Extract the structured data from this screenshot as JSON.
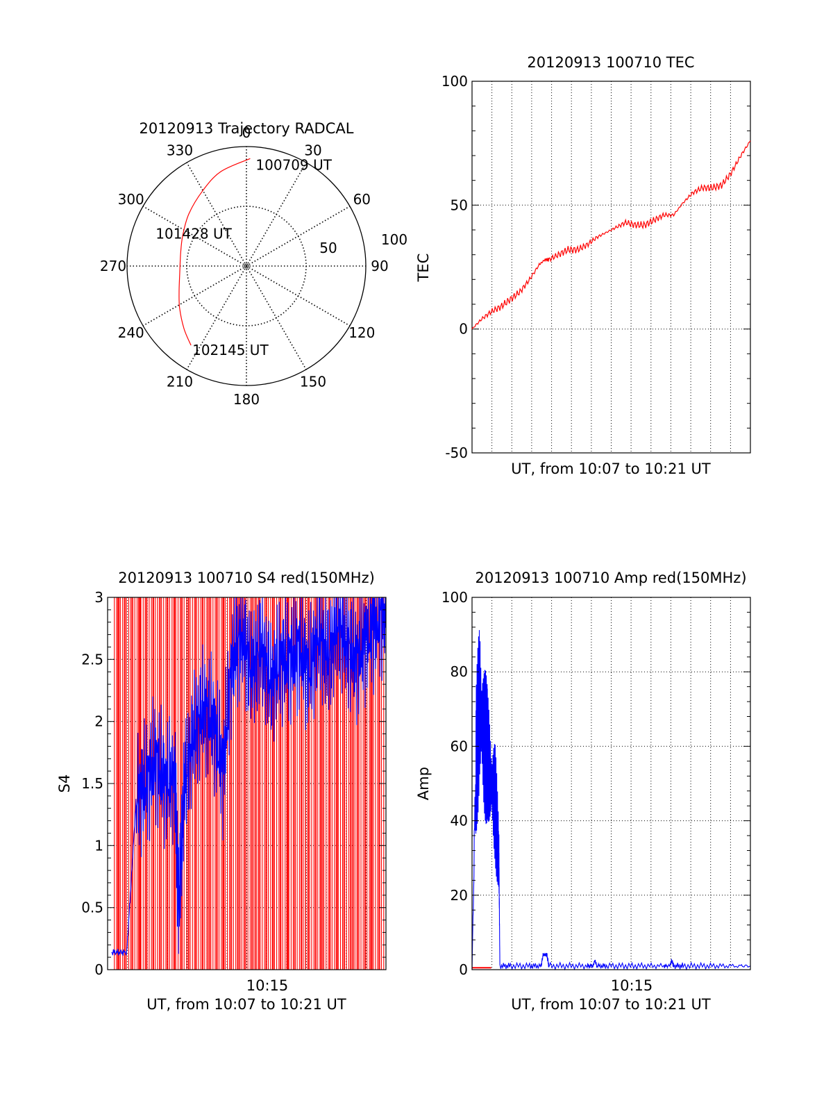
{
  "colors": {
    "red": "#ff0000",
    "blue": "#0000ff",
    "axis": "#000000",
    "background": "#ffffff"
  },
  "chart_data": [
    {
      "type": "polar",
      "title": "20120913 Trajectory RADCAL",
      "angle_labels": [
        "0",
        "30",
        "60",
        "90",
        "120",
        "150",
        "180",
        "210",
        "240",
        "270",
        "300",
        "330"
      ],
      "radial_tick_labels": [
        "50",
        "100"
      ],
      "rlim": [
        0,
        100
      ],
      "grid": true,
      "trajectory": {
        "color": "red",
        "points": [
          {
            "az": 2,
            "r": 90
          },
          {
            "az": 345,
            "r": 82
          },
          {
            "az": 330,
            "r": 73
          },
          {
            "az": 312,
            "r": 65
          },
          {
            "az": 295,
            "r": 59
          },
          {
            "az": 280,
            "r": 56
          },
          {
            "az": 265,
            "r": 56
          },
          {
            "az": 250,
            "r": 60
          },
          {
            "az": 238,
            "r": 66
          },
          {
            "az": 225,
            "r": 74
          },
          {
            "az": 215,
            "r": 81
          }
        ]
      },
      "annotations": [
        {
          "text": "100709 UT",
          "az": 2,
          "r": 90
        },
        {
          "text": "101428 UT",
          "az": 293,
          "r": 32
        },
        {
          "text": "102145 UT",
          "az": 215,
          "r": 81
        }
      ]
    },
    {
      "type": "line",
      "title": "20120913 100710 TEC",
      "xlabel": "UT, from 10:07 to 10:21 UT",
      "ylabel": "TEC",
      "xlim": [
        0,
        14.5
      ],
      "ylim": [
        -50,
        100
      ],
      "yticks": [
        "-50",
        "0",
        "50",
        "100"
      ],
      "grid": true,
      "series": [
        {
          "color": "red",
          "x": [
            0,
            0.5,
            1.0,
            1.5,
            2.0,
            2.5,
            3.0,
            3.5,
            3.8,
            4.0,
            4.5,
            5.0,
            5.5,
            6.0,
            6.5,
            7.0,
            7.5,
            8.0,
            8.5,
            9.0,
            9.5,
            10.0,
            10.5,
            11.0,
            11.5,
            12.0,
            12.5,
            13.0,
            13.5,
            14.0,
            14.5
          ],
          "y": [
            0,
            4,
            7,
            9,
            12,
            15,
            20,
            26,
            28,
            28,
            30,
            32,
            32,
            34,
            37,
            39,
            41,
            43,
            42,
            42,
            44,
            46,
            46,
            51,
            55,
            57,
            57,
            58,
            63,
            70,
            76
          ]
        }
      ]
    },
    {
      "type": "line",
      "title": "20120913 100710 S4 red(150MHz)",
      "xlabel": "UT, from 10:07 to 10:21 UT",
      "ylabel": "S4",
      "xticks": [
        "10:15"
      ],
      "xlim": [
        0,
        14.5
      ],
      "ylim": [
        0,
        3
      ],
      "yticks": [
        "0",
        "0.5",
        "1",
        "1.5",
        "2",
        "2.5",
        "3"
      ],
      "grid": true,
      "series": [
        {
          "color": "blue",
          "x": [
            0.2,
            1.0,
            1.5,
            2.0,
            2.5,
            3.0,
            3.5,
            3.7,
            4.0,
            4.5,
            5.0,
            5.5,
            6.0,
            6.5,
            7.0,
            7.5,
            8.0,
            8.5,
            9.0,
            9.5,
            10.0,
            10.5,
            11.0,
            11.5,
            12.0,
            12.5,
            13.0,
            13.5,
            14.0,
            14.5
          ],
          "y": [
            0.14,
            0.14,
            1.4,
            1.5,
            1.7,
            1.5,
            1.55,
            0.5,
            1.5,
            1.9,
            2.1,
            2.0,
            1.6,
            2.5,
            2.7,
            2.4,
            2.6,
            2.3,
            2.5,
            2.5,
            2.6,
            2.4,
            2.7,
            2.5,
            2.8,
            2.6,
            2.5,
            2.7,
            2.8,
            2.9
          ]
        },
        {
          "color": "red",
          "x": [
            0.6,
            1.7,
            2.6,
            3.5,
            4.3,
            5.2,
            6.0,
            6.9,
            7.7,
            8.6,
            9.4,
            10.3,
            11.1,
            12.0,
            12.8,
            13.7
          ],
          "y": [
            3,
            3,
            3,
            3,
            3,
            3,
            3,
            3,
            3,
            3,
            3,
            3,
            3,
            3,
            3,
            3
          ]
        }
      ]
    },
    {
      "type": "line",
      "title": "20120913 100710 Amp red(150MHz)",
      "xlabel": "UT, from 10:07 to 10:21 UT",
      "ylabel": "Amp",
      "xticks": [
        "10:15"
      ],
      "xlim": [
        0,
        14.5
      ],
      "ylim": [
        0,
        100
      ],
      "yticks": [
        "0",
        "20",
        "40",
        "60",
        "80",
        "100"
      ],
      "grid": true,
      "series": [
        {
          "color": "blue",
          "x": [
            0,
            0.2,
            0.4,
            0.6,
            0.8,
            1.0,
            1.2,
            1.4,
            1.45,
            2,
            3,
            3.6,
            3.7,
            3.8,
            3.9,
            4.0,
            5,
            6,
            6.3,
            6.4,
            6.5,
            7,
            8,
            9,
            10,
            10.3,
            10.4,
            10.5,
            11,
            12,
            13,
            14,
            14.5
          ],
          "y": [
            0,
            55,
            72,
            62,
            58,
            50,
            45,
            30,
            1,
            1,
            1,
            1,
            4,
            4,
            4,
            1,
            1,
            1,
            1,
            2.5,
            1,
            1,
            1,
            1,
            1,
            1,
            2.5,
            1,
            1,
            1,
            1,
            1,
            1
          ]
        },
        {
          "color": "red",
          "x": [
            0,
            1.0
          ],
          "y": [
            0.5,
            0.5
          ]
        }
      ]
    }
  ]
}
